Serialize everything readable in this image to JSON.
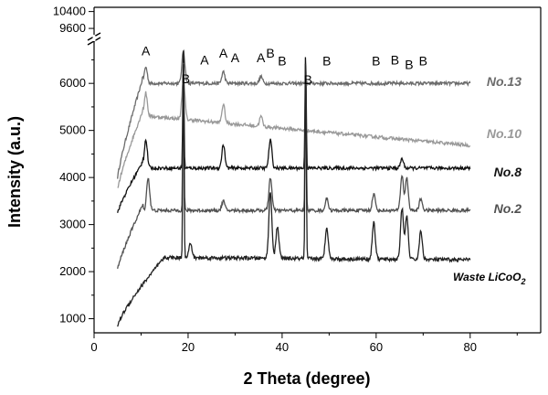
{
  "chart_data": {
    "type": "line",
    "xlabel": "2 Theta (degree)",
    "ylabel": "Intensity (a.u.)",
    "xlim": [
      0,
      95
    ],
    "ylim": [
      700,
      10600
    ],
    "x_ticks": [
      0,
      20,
      40,
      60,
      80
    ],
    "y_ticks_lower": [
      1000,
      2000,
      3000,
      4000,
      5000,
      6000
    ],
    "y_ticks_upper": [
      9600,
      10400
    ],
    "axis_break": [
      6800,
      9300
    ],
    "x_range": [
      5,
      80
    ],
    "series": [
      {
        "name": "No.13",
        "label": "No.13",
        "color": "#6b6b6b",
        "start": 4000,
        "base": 6000,
        "peaks": [
          [
            11,
            6350
          ],
          [
            19,
            6700
          ],
          [
            27.5,
            6250
          ],
          [
            35.5,
            6150
          ]
        ],
        "noise": 35
      },
      {
        "name": "No.10",
        "label": "No.10",
        "color": "#999999",
        "start": 3750,
        "base_start": 5300,
        "base_end": 4680,
        "peaks": [
          [
            11,
            5800
          ],
          [
            19,
            6100
          ],
          [
            27.5,
            5550
          ],
          [
            35.5,
            5300
          ]
        ],
        "noise": 35
      },
      {
        "name": "No.8",
        "label": "No.8",
        "color": "#111111",
        "start": 3250,
        "base": 4200,
        "peaks": [
          [
            11,
            4800
          ],
          [
            19,
            6800
          ],
          [
            27.5,
            4700
          ],
          [
            37.5,
            4800
          ],
          [
            45,
            6700
          ],
          [
            65.5,
            4400
          ]
        ],
        "noise": 35
      },
      {
        "name": "No.2",
        "label": "No.2",
        "color": "#505050",
        "start": 2050,
        "base": 3300,
        "peaks": [
          [
            11.5,
            4000
          ],
          [
            19,
            6600
          ],
          [
            27.5,
            3500
          ],
          [
            37.5,
            4000
          ],
          [
            45,
            6500
          ],
          [
            49.5,
            3550
          ],
          [
            59.5,
            3650
          ],
          [
            65.5,
            4050
          ],
          [
            66.5,
            4000
          ],
          [
            69.5,
            3550
          ]
        ],
        "noise": 35
      },
      {
        "name": "Waste LiCoO2",
        "label_main": "Waste LiCoO",
        "label_sub": "2",
        "color": "#222222",
        "start": 850,
        "base_ramp_end": 2300,
        "base_end": 2250,
        "peaks": [
          [
            19,
            6650
          ],
          [
            20.5,
            2600
          ],
          [
            37.5,
            3700
          ],
          [
            39,
            2950
          ],
          [
            45,
            6600
          ],
          [
            49.5,
            2950
          ],
          [
            59.5,
            3050
          ],
          [
            65.5,
            3350
          ],
          [
            66.5,
            3200
          ],
          [
            69.5,
            2850
          ]
        ],
        "noise": 40
      }
    ],
    "peak_markers": [
      {
        "label": "A",
        "x": 11,
        "y": 6600
      },
      {
        "label": "B",
        "x": 19.5,
        "y": 7000
      },
      {
        "label": "A",
        "x": 23.5,
        "y": 6400
      },
      {
        "label": "A",
        "x": 27.5,
        "y": 6550
      },
      {
        "label": "A",
        "x": 30,
        "y": 6450
      },
      {
        "label": "A",
        "x": 35.5,
        "y": 6450
      },
      {
        "label": "B",
        "x": 37.5,
        "y": 6550
      },
      {
        "label": "B",
        "x": 40,
        "y": 6380
      },
      {
        "label": "B",
        "x": 45.5,
        "y": 6950
      },
      {
        "label": "B",
        "x": 49.5,
        "y": 6380
      },
      {
        "label": "B",
        "x": 60,
        "y": 6380
      },
      {
        "label": "B",
        "x": 64,
        "y": 6400
      },
      {
        "label": "B",
        "x": 67,
        "y": 6300
      },
      {
        "label": "B",
        "x": 70,
        "y": 6380
      }
    ]
  }
}
